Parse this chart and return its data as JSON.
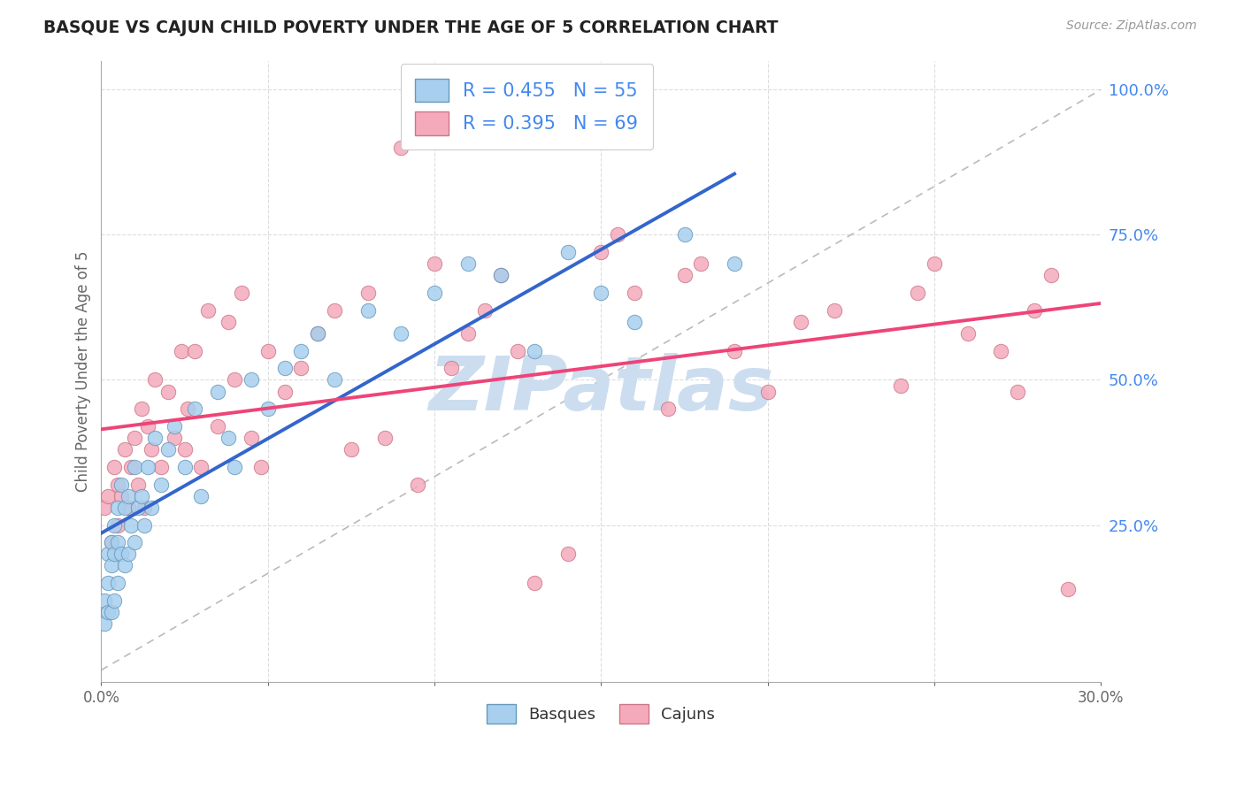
{
  "title": "BASQUE VS CAJUN CHILD POVERTY UNDER THE AGE OF 5 CORRELATION CHART",
  "source": "Source: ZipAtlas.com",
  "ylabel": "Child Poverty Under the Age of 5",
  "xmin": 0.0,
  "xmax": 0.3,
  "ymin": 0.0,
  "ymax": 1.05,
  "xtick_positions": [
    0.0,
    0.05,
    0.1,
    0.15,
    0.2,
    0.25,
    0.3
  ],
  "xtick_labels": [
    "0.0%",
    "",
    "",
    "",
    "",
    "",
    "30.0%"
  ],
  "ytick_vals": [
    0.25,
    0.5,
    0.75,
    1.0
  ],
  "ytick_labels": [
    "25.0%",
    "50.0%",
    "75.0%",
    "100.0%"
  ],
  "basque_color": "#A8CFEE",
  "basque_edge": "#6699BB",
  "cajun_color": "#F4AABB",
  "cajun_edge": "#CC7788",
  "basque_R": 0.455,
  "basque_N": 55,
  "cajun_R": 0.395,
  "cajun_N": 69,
  "blue_line_color": "#3366CC",
  "pink_line_color": "#EE4477",
  "diag_color": "#BBBBBB",
  "grid_color": "#DDDDDD",
  "watermark_color": "#CCDDF0",
  "right_tick_color": "#4488EE",
  "title_color": "#222222",
  "source_color": "#999999",
  "ylabel_color": "#666666",
  "basque_x": [
    0.001,
    0.001,
    0.002,
    0.002,
    0.002,
    0.003,
    0.003,
    0.003,
    0.004,
    0.004,
    0.004,
    0.005,
    0.005,
    0.005,
    0.006,
    0.006,
    0.007,
    0.007,
    0.008,
    0.008,
    0.009,
    0.01,
    0.01,
    0.011,
    0.012,
    0.013,
    0.014,
    0.015,
    0.016,
    0.018,
    0.02,
    0.022,
    0.025,
    0.028,
    0.03,
    0.035,
    0.038,
    0.04,
    0.045,
    0.05,
    0.055,
    0.06,
    0.065,
    0.07,
    0.08,
    0.09,
    0.1,
    0.11,
    0.12,
    0.13,
    0.14,
    0.15,
    0.16,
    0.175,
    0.19
  ],
  "basque_y": [
    0.08,
    0.12,
    0.1,
    0.15,
    0.2,
    0.1,
    0.18,
    0.22,
    0.12,
    0.2,
    0.25,
    0.15,
    0.22,
    0.28,
    0.2,
    0.32,
    0.18,
    0.28,
    0.2,
    0.3,
    0.25,
    0.22,
    0.35,
    0.28,
    0.3,
    0.25,
    0.35,
    0.28,
    0.4,
    0.32,
    0.38,
    0.42,
    0.35,
    0.45,
    0.3,
    0.48,
    0.4,
    0.35,
    0.5,
    0.45,
    0.52,
    0.55,
    0.58,
    0.5,
    0.62,
    0.58,
    0.65,
    0.7,
    0.68,
    0.55,
    0.72,
    0.65,
    0.6,
    0.75,
    0.7
  ],
  "cajun_x": [
    0.001,
    0.002,
    0.003,
    0.004,
    0.005,
    0.005,
    0.006,
    0.007,
    0.008,
    0.009,
    0.01,
    0.011,
    0.012,
    0.013,
    0.014,
    0.015,
    0.016,
    0.018,
    0.02,
    0.022,
    0.024,
    0.025,
    0.026,
    0.028,
    0.03,
    0.032,
    0.035,
    0.038,
    0.04,
    0.042,
    0.045,
    0.048,
    0.05,
    0.055,
    0.06,
    0.065,
    0.07,
    0.075,
    0.08,
    0.085,
    0.09,
    0.095,
    0.1,
    0.105,
    0.11,
    0.115,
    0.12,
    0.125,
    0.13,
    0.14,
    0.15,
    0.155,
    0.16,
    0.17,
    0.175,
    0.18,
    0.19,
    0.2,
    0.21,
    0.22,
    0.24,
    0.245,
    0.25,
    0.26,
    0.27,
    0.275,
    0.28,
    0.285,
    0.29
  ],
  "cajun_y": [
    0.28,
    0.3,
    0.22,
    0.35,
    0.25,
    0.32,
    0.3,
    0.38,
    0.28,
    0.35,
    0.4,
    0.32,
    0.45,
    0.28,
    0.42,
    0.38,
    0.5,
    0.35,
    0.48,
    0.4,
    0.55,
    0.38,
    0.45,
    0.55,
    0.35,
    0.62,
    0.42,
    0.6,
    0.5,
    0.65,
    0.4,
    0.35,
    0.55,
    0.48,
    0.52,
    0.58,
    0.62,
    0.38,
    0.65,
    0.4,
    0.9,
    0.32,
    0.7,
    0.52,
    0.58,
    0.62,
    0.68,
    0.55,
    0.15,
    0.2,
    0.72,
    0.75,
    0.65,
    0.45,
    0.68,
    0.7,
    0.55,
    0.48,
    0.6,
    0.62,
    0.49,
    0.65,
    0.7,
    0.58,
    0.55,
    0.48,
    0.62,
    0.68,
    0.14
  ]
}
